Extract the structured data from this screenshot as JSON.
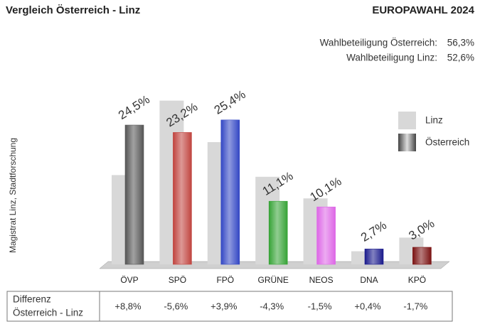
{
  "chart_data": {
    "type": "bar",
    "title": "Vergleich Österreich - Linz",
    "heading": "EUROPAWAHL 2024",
    "turnout": [
      {
        "label": "Wahlbeteiligung Österreich:",
        "value": "56,3%"
      },
      {
        "label": "Wahlbeteiligung Linz:",
        "value": "52,6%"
      }
    ],
    "source": "Magistrat Linz, Stadtforschung",
    "categories": [
      "ÖVP",
      "SPÖ",
      "FPÖ",
      "GRÜNE",
      "NEOS",
      "DNA",
      "KPÖ"
    ],
    "series": [
      {
        "name": "Linz",
        "color": "#d8d8d8",
        "values": [
          15.7,
          28.8,
          21.5,
          15.4,
          11.6,
          2.3,
          4.7
        ]
      },
      {
        "name": "Österreich",
        "colors": [
          "#555555",
          "#c0443f",
          "#3347c4",
          "#36a336",
          "#dd66e6",
          "#1a1a8c",
          "#7a1212"
        ],
        "values": [
          24.5,
          23.2,
          25.4,
          11.1,
          10.1,
          2.7,
          3.0
        ],
        "value_labels": [
          "24,5%",
          "23,2%",
          "25,4%",
          "11,1%",
          "10,1%",
          "2,7%",
          "3,0%"
        ]
      }
    ],
    "label_colors": [
      "#444444",
      "#f06060",
      "#3040b0",
      "#207020",
      "#e040e0",
      "#3a3aa0",
      "#c02020"
    ],
    "difference_label": [
      "Differenz",
      "Österreich - Linz"
    ],
    "differences": [
      "+8,8%",
      "-5,6%",
      "+3,9%",
      "-4,3%",
      "-1,5%",
      "+0,4%",
      "-1,7%"
    ]
  }
}
